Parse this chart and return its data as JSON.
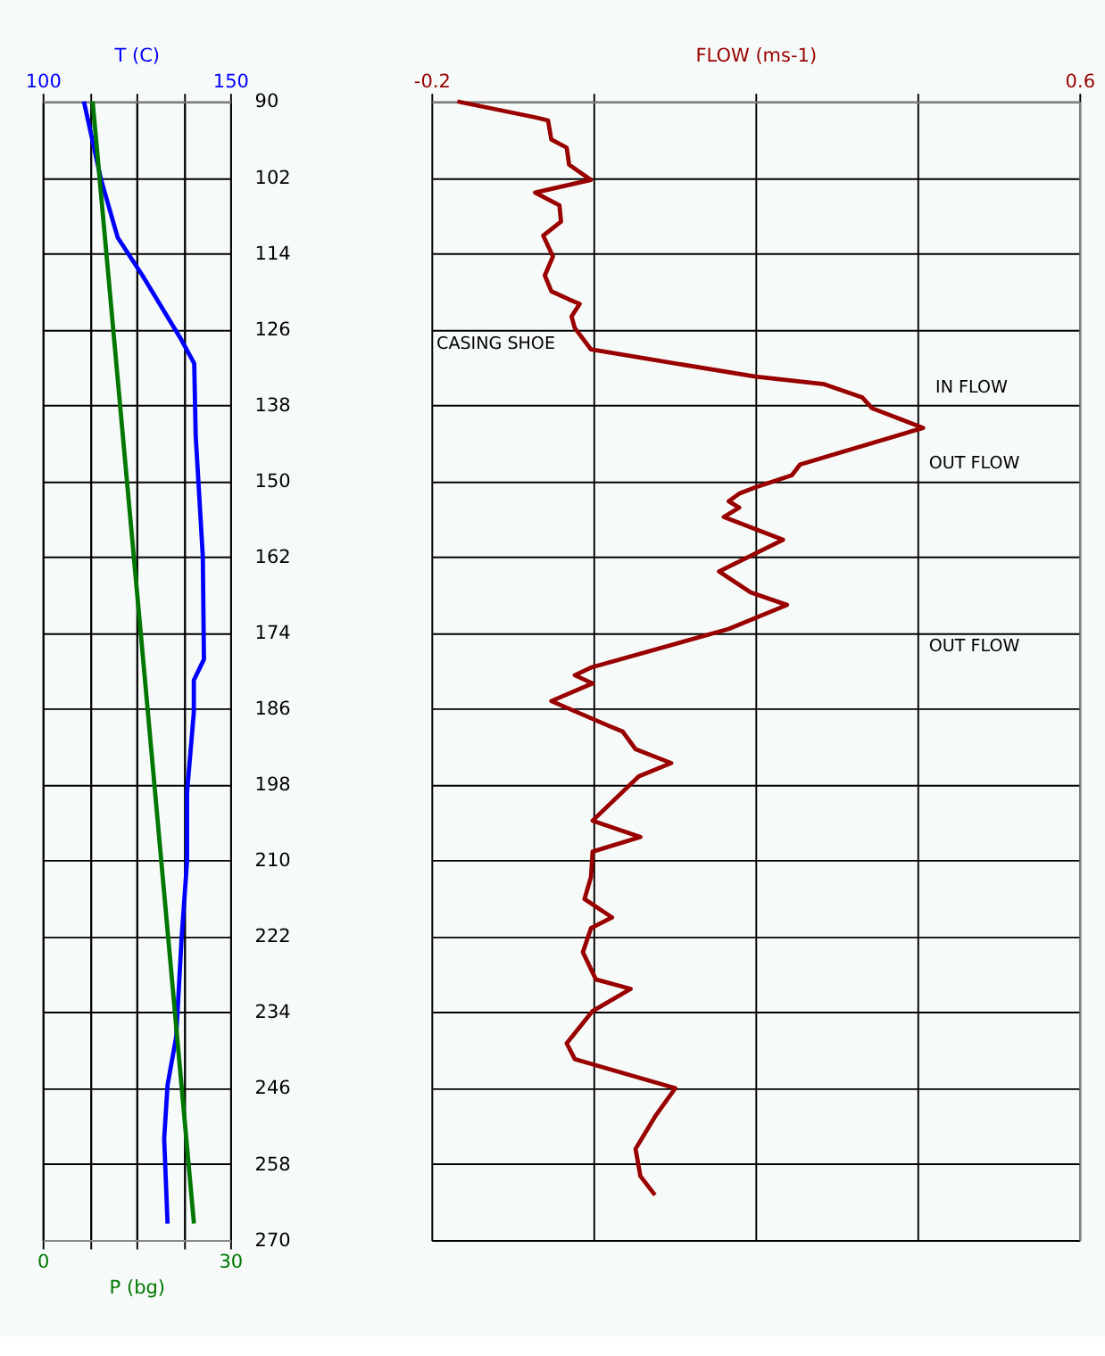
{
  "chart_data": [
    {
      "type": "line",
      "orientation": "horizontal",
      "xlabel": "P (bg)",
      "x2label": "T (C)",
      "xlim": [
        0,
        30
      ],
      "xticks": [
        0,
        {
          "value": 7.5,
          "label": null
        },
        {
          "value": 15,
          "label": null
        },
        {
          "value": 22.5,
          "label": null
        },
        30
      ],
      "x2lim": [
        100,
        150
      ],
      "x2ticks": [
        100,
        {
          "value": 112.5,
          "label": null
        },
        {
          "value": 125,
          "label": null
        },
        {
          "value": 137.5,
          "label": null
        },
        150
      ],
      "ylim": [
        270,
        90
      ],
      "yticks": [
        90,
        102,
        114,
        126,
        138,
        150,
        162,
        174,
        186,
        198,
        210,
        222,
        234,
        246,
        258,
        270
      ],
      "grid": true,
      "series": [
        {
          "color": "#0000ff",
          "axis": "x2",
          "x": [
            90,
            102.4,
            111.5,
            117.5,
            127.7,
            131.4,
            142.8,
            162,
            178.2,
            181.5,
            186.6,
            199.2,
            210,
            222.7,
            237.9,
            245.5,
            254,
            267.4
          ],
          "values": [
            111,
            115.6,
            120,
            126.6,
            137,
            140.4,
            140.8,
            142.7,
            143,
            140.3,
            140.3,
            138.5,
            138.5,
            137,
            135.6,
            133.3,
            132.4,
            133.3
          ]
        },
        {
          "color": "#007700",
          "x": [
            90,
            146.9,
            180.7,
            267.4
          ],
          "values": [
            8,
            13.2,
            16.3,
            24.2
          ]
        }
      ]
    },
    {
      "type": "line",
      "orientation": "horizontal",
      "x2label": "FLOW (ms-1)",
      "tick_labels": "x",
      "x2lim": [
        -0.2,
        0.6
      ],
      "x2ticks": [
        -0.2,
        {
          "value": 0,
          "label": null
        },
        {
          "value": 0.2,
          "label": null
        },
        {
          "value": 0.4,
          "label": null
        },
        0.6
      ],
      "ylim": [
        270,
        90
      ],
      "yticks": [
        90,
        102,
        114,
        126,
        138,
        150,
        162,
        174,
        186,
        198,
        210,
        222,
        234,
        246,
        258,
        270
      ],
      "grid": true,
      "annotations": [
        "CASING SHOE",
        "IN FLOW",
        "OUT FLOW",
        "OUT FLOW"
      ],
      "series": [
        {
          "color": "#990000",
          "axis": "x2",
          "x": [
            90,
            92.5,
            93,
            96,
            97.3,
            100,
            102.4,
            104.4,
            106.4,
            109,
            111.2,
            114.5,
            117.5,
            120,
            121.3,
            122,
            124,
            125.8,
            129.2,
            133.5,
            134.7,
            136.8,
            138.5,
            141.6,
            147.4,
            149.1,
            151,
            152,
            153.2,
            154.2,
            155.7,
            159.3,
            164.3,
            167.6,
            169.6,
            173.4,
            179.5,
            180.7,
            182,
            184.8,
            188.6,
            189.6,
            192.4,
            194.6,
            196.7,
            203.7,
            206.3,
            208.6,
            212.6,
            216.1,
            219,
            220.7,
            224.5,
            228.8,
            230.3,
            233.8,
            238.9,
            241.4,
            246,
            250.5,
            255.6,
            259.9,
            262.9
          ],
          "values": [
            -0.168,
            -0.072,
            -0.056,
            -0.052,
            -0.033,
            -0.03,
            -0.003,
            -0.072,
            -0.042,
            -0.04,
            -0.062,
            -0.05,
            -0.06,
            -0.052,
            -0.03,
            -0.017,
            -0.027,
            -0.023,
            -0.003,
            0.2,
            0.285,
            0.332,
            0.344,
            0.407,
            0.255,
            0.245,
            0.2,
            0.18,
            0.167,
            0.18,
            0.161,
            0.234,
            0.155,
            0.194,
            0.239,
            0.167,
            -0.003,
            -0.023,
            -0.001,
            -0.052,
            0.017,
            0.036,
            0.052,
            0.096,
            0.056,
            -0.001,
            0.058,
            -0.001,
            -0.003,
            -0.011,
            0.023,
            -0.003,
            -0.013,
            0.003,
            0.046,
            -0.001,
            -0.033,
            -0.023,
            0.101,
            0.076,
            0.052,
            0.058,
            0.076
          ]
        }
      ]
    }
  ]
}
